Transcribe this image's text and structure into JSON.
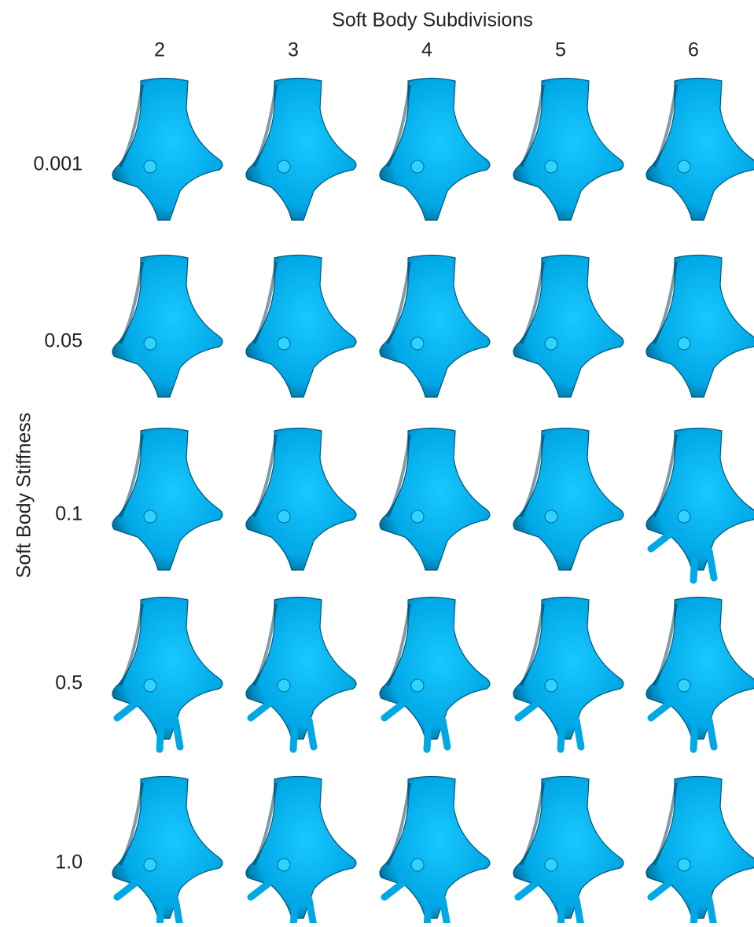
{
  "header": {
    "title": "Soft Body Subdivisions",
    "columns": [
      "2",
      "3",
      "4",
      "5",
      "6"
    ]
  },
  "side": {
    "title": "Soft Body Stiffness",
    "rows": [
      "0.001",
      "0.05",
      "0.1",
      "0.5",
      "1.0"
    ]
  }
}
